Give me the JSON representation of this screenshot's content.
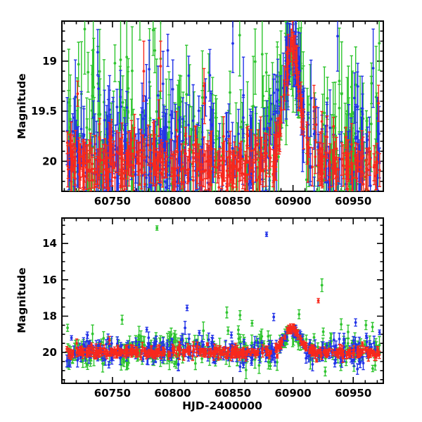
{
  "figure": {
    "background": "#ffffff",
    "frame_color": "#000000",
    "text_color": "#000000"
  },
  "prng_seed": 987241,
  "chart_data": [
    {
      "type": "scatter",
      "panel": "top",
      "title": "",
      "xlabel": "",
      "ylabel": "Magnitude",
      "xlim": [
        60708,
        60975
      ],
      "ylim": [
        20.3,
        18.6
      ],
      "xticks": [
        60750,
        60800,
        60850,
        60900,
        60950
      ],
      "yticks": [
        19,
        19.5,
        20
      ],
      "x_minor_step": 10,
      "y_minor_step": 0.1,
      "x_data_range": [
        60712,
        60972
      ],
      "description": "Dense three-band photometry with error bars; quiescent baseline near magnitude 20, outburst peaking near magnitude 18.85 at HJD-2400000 ~ 60899",
      "series": [
        {
          "name": "green",
          "color": "#2fc52f",
          "n": 320,
          "baseline": 19.88,
          "noise": 0.4,
          "bright_prob": 0.1,
          "bright_extra": 0.9,
          "err_min": 0.18,
          "err_max": 0.55,
          "outburst": {
            "center": 60899,
            "sigma": 7.0,
            "amplitude": 0.95
          }
        },
        {
          "name": "blue",
          "color": "#2334e8",
          "n": 320,
          "baseline": 19.97,
          "noise": 0.3,
          "bright_prob": 0.08,
          "bright_extra": 0.7,
          "err_min": 0.12,
          "err_max": 0.4,
          "outburst": {
            "center": 60899,
            "sigma": 7.0,
            "amplitude": 1.05
          }
        },
        {
          "name": "red",
          "color": "#f8281c",
          "n": 420,
          "baseline": 20.03,
          "noise": 0.13,
          "bright_prob": 0.05,
          "bright_extra": 0.8,
          "err_min": 0.08,
          "err_max": 0.22,
          "outburst": {
            "center": 60899,
            "sigma": 6.5,
            "amplitude": 1.18
          }
        }
      ],
      "outliers": [
        {
          "series": "green",
          "x": 60727,
          "mag": 18.68,
          "err": 0.45
        },
        {
          "series": "red",
          "x": 60776,
          "mag": 19.1,
          "err": 0.3
        },
        {
          "series": "red",
          "x": 60790,
          "mag": 19.05,
          "err": 0.25
        },
        {
          "series": "blue",
          "x": 60937,
          "mag": 18.75,
          "err": 0.35
        }
      ]
    },
    {
      "type": "scatter",
      "panel": "bottom",
      "title": "",
      "xlabel": "HJD-2400000",
      "ylabel": "Magnitude",
      "xlim": [
        60708,
        60975
      ],
      "ylim": [
        21.7,
        12.6
      ],
      "xticks": [
        60750,
        60800,
        60850,
        60900,
        60950
      ],
      "yticks": [
        14,
        16,
        18,
        20
      ],
      "x_minor_step": 10,
      "y_minor_step": 0.5,
      "x_data_range": [
        60712,
        60972
      ],
      "description": "Same light curve on wide magnitude scale; tight band near magnitude 20 with bright flare outliers up to magnitude ~13.2 and outburst bump to ~18.65 at HJD-2400000 ~ 60899",
      "series": [
        {
          "name": "green",
          "color": "#2fc52f",
          "n": 300,
          "baseline": 19.92,
          "noise": 0.42,
          "bright_prob": 0.06,
          "bright_extra": 1.3,
          "err_min": 0.15,
          "err_max": 0.5,
          "outburst": {
            "center": 60899,
            "sigma": 7.0,
            "amplitude": 1.0
          }
        },
        {
          "name": "blue",
          "color": "#2334e8",
          "n": 300,
          "baseline": 19.98,
          "noise": 0.32,
          "bright_prob": 0.05,
          "bright_extra": 1.1,
          "err_min": 0.12,
          "err_max": 0.4,
          "outburst": {
            "center": 60899,
            "sigma": 7.0,
            "amplitude": 1.1
          }
        },
        {
          "name": "red",
          "color": "#f8281c",
          "n": 400,
          "baseline": 20.0,
          "noise": 0.13,
          "bright_prob": 0.04,
          "bright_extra": 0.6,
          "err_min": 0.08,
          "err_max": 0.25,
          "outburst": {
            "center": 60899,
            "sigma": 6.5,
            "amplitude": 1.35
          }
        }
      ],
      "outliers": [
        {
          "series": "green",
          "x": 60787,
          "mag": 13.15,
          "err": 0.12
        },
        {
          "series": "blue",
          "x": 60878,
          "mag": 13.5,
          "err": 0.12
        },
        {
          "series": "green",
          "x": 60924,
          "mag": 16.3,
          "err": 0.35
        },
        {
          "series": "red",
          "x": 60921,
          "mag": 17.15,
          "err": 0.12
        },
        {
          "series": "blue",
          "x": 60812,
          "mag": 17.55,
          "err": 0.15
        },
        {
          "series": "green",
          "x": 60758,
          "mag": 18.2,
          "err": 0.25
        },
        {
          "series": "green",
          "x": 60845,
          "mag": 17.8,
          "err": 0.3
        },
        {
          "series": "green",
          "x": 60856,
          "mag": 17.95,
          "err": 0.25
        },
        {
          "series": "blue",
          "x": 60884,
          "mag": 18.05,
          "err": 0.2
        },
        {
          "series": "green",
          "x": 60905,
          "mag": 17.9,
          "err": 0.25
        },
        {
          "series": "green",
          "x": 60940,
          "mag": 18.45,
          "err": 0.3
        },
        {
          "series": "blue",
          "x": 60952,
          "mag": 18.35,
          "err": 0.2
        },
        {
          "series": "green",
          "x": 60966,
          "mag": 18.6,
          "err": 0.25
        }
      ]
    }
  ]
}
